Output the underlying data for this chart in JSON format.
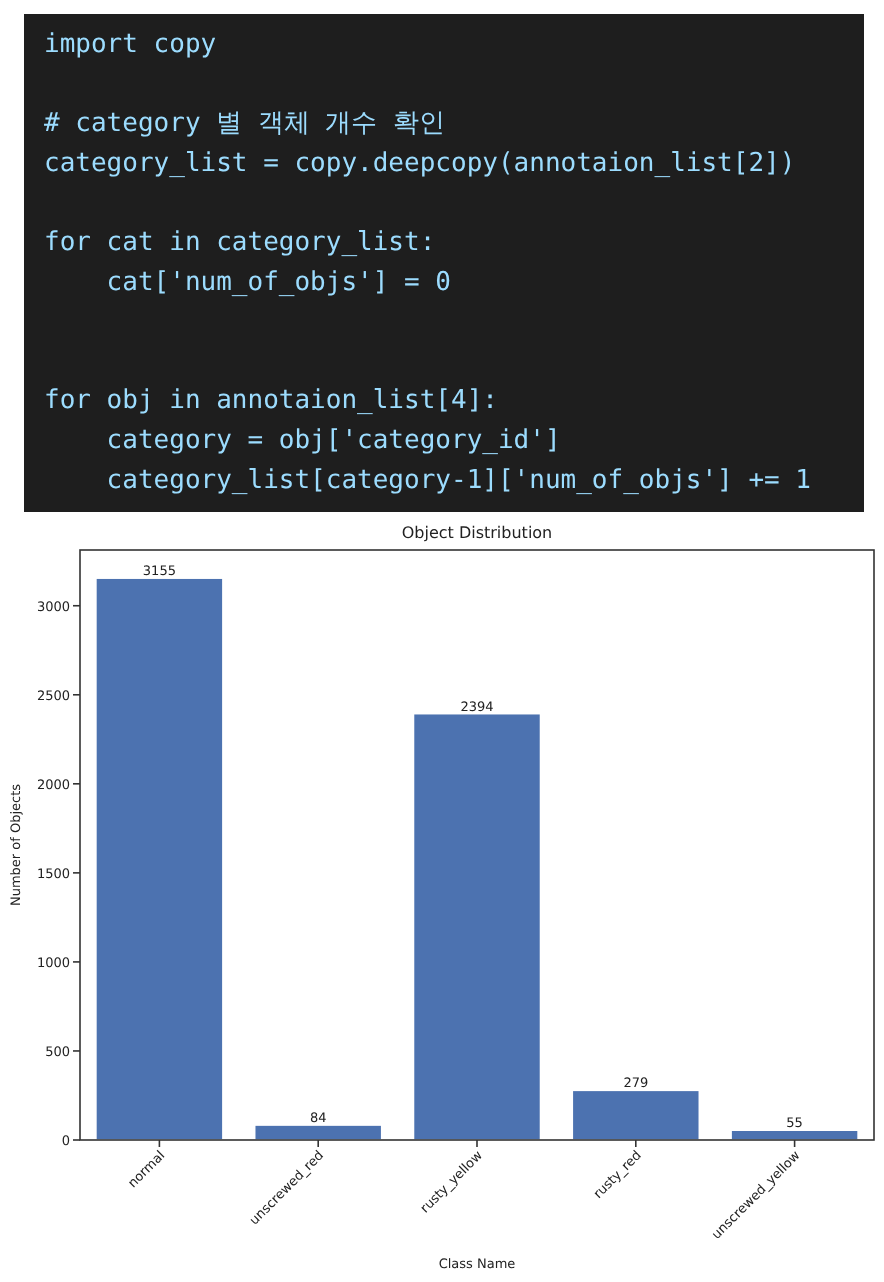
{
  "chart_data": {
    "type": "bar",
    "title": "Object Distribution",
    "xlabel": "Class Name",
    "ylabel": "Number of Objects",
    "categories": [
      "normal",
      "unscrewed_red",
      "rusty_yellow",
      "rusty_red",
      "unscrewed_yellow"
    ],
    "values": [
      3155,
      84,
      2394,
      279,
      55
    ],
    "color": "#4c72b0",
    "ylim": [
      0,
      3313
    ],
    "yticks": [
      0,
      500,
      1000,
      1500,
      2000,
      2500,
      3000
    ],
    "data_labels": true,
    "annotations": [
      "import copy\n\n# category 별 객체 개수 확인\ncategory_list = copy.deepcopy(annotaion_list[2])\n\nfor cat in category_list:\n    cat['num_of_objs'] = 0\n\n\nfor obj in annotaion_list[4]:\n    category = obj['category_id']\n    category_list[category-1]['num_of_objs'] += 1"
    ]
  }
}
